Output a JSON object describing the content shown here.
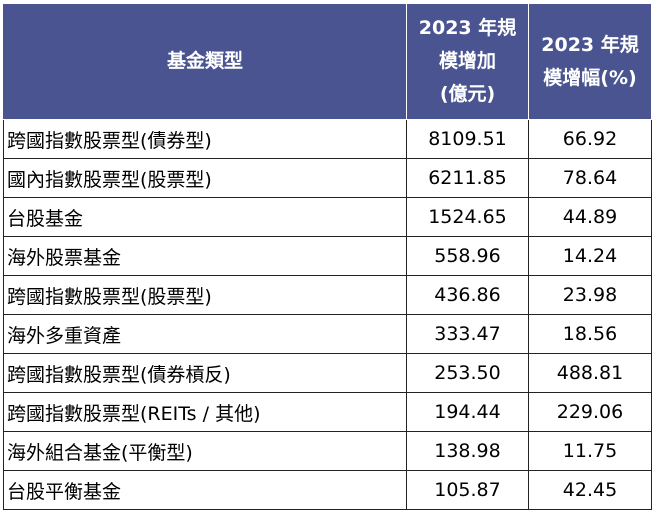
{
  "table": {
    "headers": {
      "category": "基金類型",
      "increase": [
        "2023 年規",
        "模增加",
        "(億元)"
      ],
      "growth": [
        "2023 年規",
        "模增幅(%)"
      ]
    },
    "rows": [
      {
        "name": "跨國指數股票型(債券型)",
        "increase": "8109.51",
        "growth": "66.92"
      },
      {
        "name": "國內指數股票型(股票型)",
        "increase": "6211.85",
        "growth": "78.64"
      },
      {
        "name": "台股基金",
        "increase": "1524.65",
        "growth": "44.89"
      },
      {
        "name": "海外股票基金",
        "increase": "558.96",
        "growth": "14.24"
      },
      {
        "name": "跨國指數股票型(股票型)",
        "increase": "436.86",
        "growth": "23.98"
      },
      {
        "name": "海外多重資產",
        "increase": "333.47",
        "growth": "18.56"
      },
      {
        "name": "跨國指數股票型(債券槓反)",
        "increase": "253.50",
        "growth": "488.81"
      },
      {
        "name": "跨國指數股票型(REITs / 其他)",
        "increase": "194.44",
        "growth": "229.06"
      },
      {
        "name": "海外組合基金(平衡型)",
        "increase": "138.98",
        "growth": "11.75"
      },
      {
        "name": "台股平衡基金",
        "increase": "105.87",
        "growth": "42.45"
      }
    ]
  }
}
